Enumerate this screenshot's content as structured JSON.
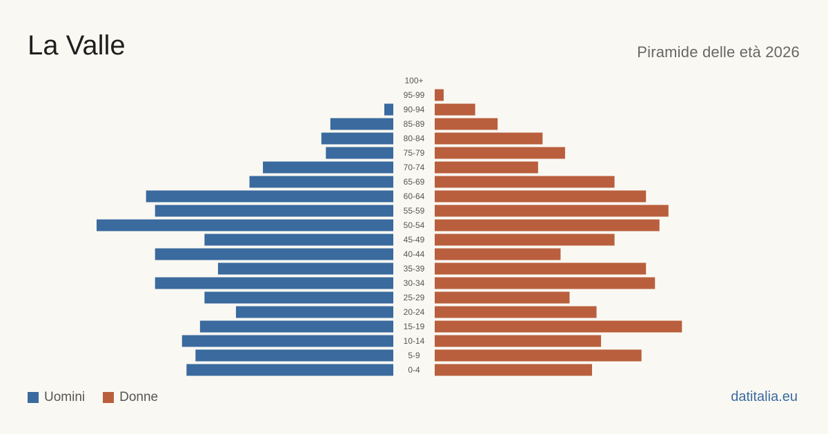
{
  "chart_data": {
    "type": "bar",
    "orientation": "population-pyramid",
    "title": "La Valle",
    "subtitle": "Piramide delle età 2026",
    "categories": [
      "100+",
      "95-99",
      "90-94",
      "85-89",
      "80-84",
      "75-79",
      "70-74",
      "65-69",
      "60-64",
      "55-59",
      "50-54",
      "45-49",
      "40-44",
      "35-39",
      "30-34",
      "25-29",
      "20-24",
      "15-19",
      "10-14",
      "5-9",
      "0-4"
    ],
    "series": [
      {
        "name": "Uomini",
        "color": "#3a6a9e",
        "values": [
          0,
          0,
          2,
          14,
          16,
          15,
          29,
          32,
          55,
          53,
          66,
          42,
          53,
          39,
          53,
          42,
          35,
          43,
          47,
          44,
          46
        ]
      },
      {
        "name": "Donne",
        "color": "#b95f3d",
        "values": [
          0,
          2,
          9,
          14,
          24,
          29,
          23,
          40,
          47,
          52,
          50,
          40,
          28,
          47,
          49,
          30,
          36,
          55,
          37,
          46,
          35
        ]
      }
    ],
    "legend_position": "bottom-left",
    "grid": false
  },
  "footer": {
    "source": "datitalia.eu"
  }
}
